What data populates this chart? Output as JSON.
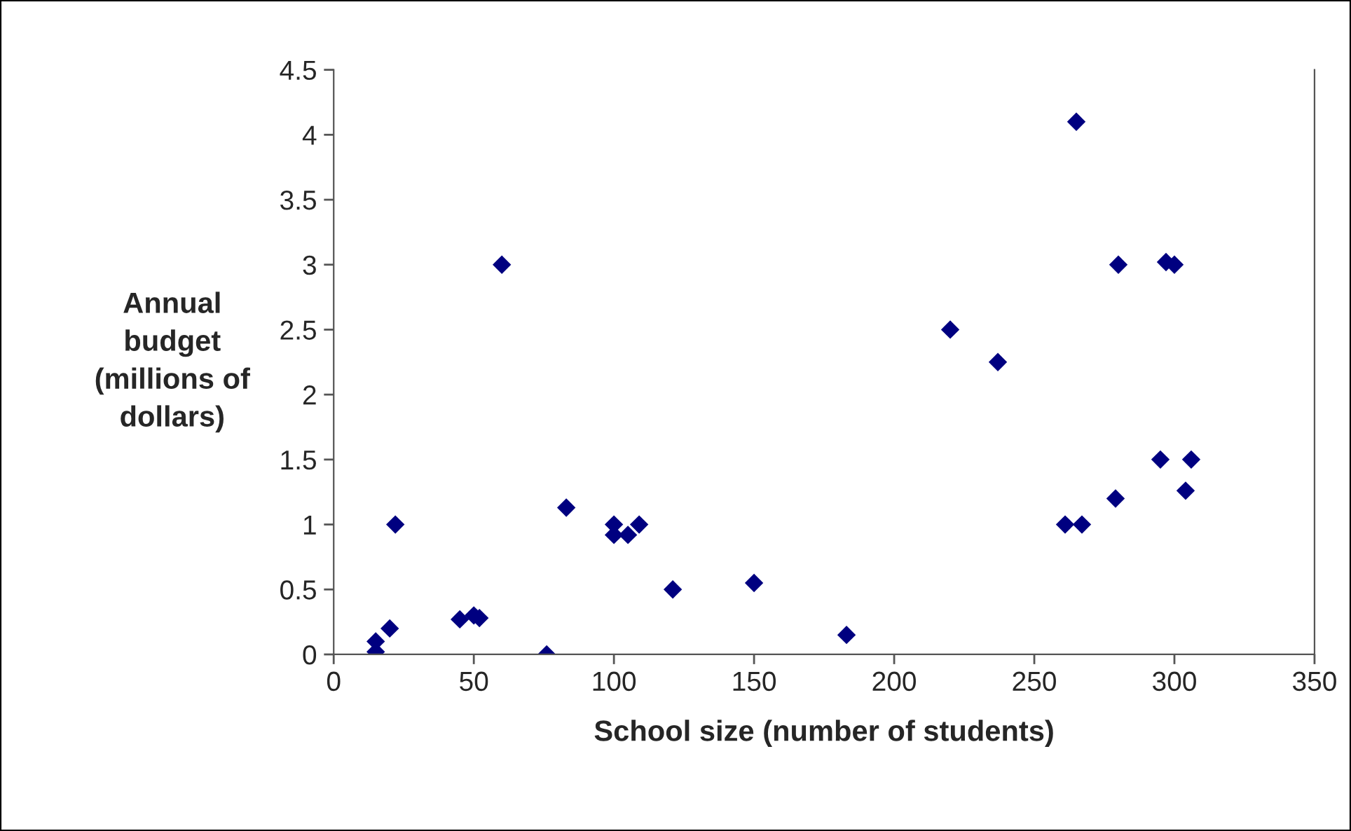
{
  "chart_data": {
    "type": "scatter",
    "xlabel": "School size (number of students)",
    "ylabel": "Annual\nbudget\n(millions of\ndollars)",
    "x": [
      15,
      15,
      20,
      22,
      45,
      50,
      52,
      60,
      76,
      83,
      100,
      100,
      105,
      109,
      121,
      150,
      183,
      220,
      237,
      261,
      265,
      267,
      279,
      280,
      295,
      297,
      300,
      304,
      306
    ],
    "series": [
      {
        "color": "#000080",
        "values": [
          0.1,
          0.02,
          0.2,
          1.0,
          0.27,
          0.3,
          0.28,
          3.0,
          0.0,
          1.13,
          1.0,
          0.92,
          0.92,
          1.0,
          0.5,
          0.55,
          0.15,
          2.5,
          2.25,
          1.0,
          4.1,
          1.0,
          1.2,
          3.0,
          1.5,
          3.02,
          3.0,
          1.26,
          1.5
        ]
      }
    ],
    "xlim": [
      0,
      350
    ],
    "xticks": [
      0,
      50,
      100,
      150,
      200,
      250,
      300,
      350
    ],
    "ylim": [
      0,
      4.5
    ],
    "yticks": [
      0,
      0.5,
      1,
      1.5,
      2,
      2.5,
      3,
      3.5,
      4,
      4.5
    ],
    "marker": "diamond",
    "grid": false,
    "legend": false
  }
}
